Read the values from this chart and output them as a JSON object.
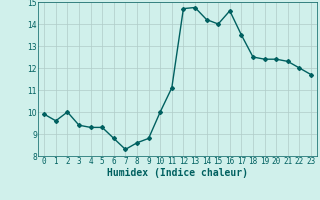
{
  "x": [
    0,
    1,
    2,
    3,
    4,
    5,
    6,
    7,
    8,
    9,
    10,
    11,
    12,
    13,
    14,
    15,
    16,
    17,
    18,
    19,
    20,
    21,
    22,
    23
  ],
  "y": [
    9.9,
    9.6,
    10.0,
    9.4,
    9.3,
    9.3,
    8.8,
    8.3,
    8.6,
    8.8,
    10.0,
    11.1,
    14.7,
    14.75,
    14.2,
    14.0,
    14.6,
    13.5,
    12.5,
    12.4,
    12.4,
    12.3,
    12.0,
    11.7
  ],
  "xlabel": "Humidex (Indice chaleur)",
  "ylim": [
    8,
    15
  ],
  "xlim": [
    -0.5,
    23.5
  ],
  "yticks": [
    8,
    9,
    10,
    11,
    12,
    13,
    14,
    15
  ],
  "xticks": [
    0,
    1,
    2,
    3,
    4,
    5,
    6,
    7,
    8,
    9,
    10,
    11,
    12,
    13,
    14,
    15,
    16,
    17,
    18,
    19,
    20,
    21,
    22,
    23
  ],
  "line_color": "#006060",
  "bg_color": "#d0f0eb",
  "grid_color": "#b0ccc8",
  "marker": "D",
  "marker_size": 2.0,
  "line_width": 1.0,
  "xlabel_fontsize": 7,
  "tick_fontsize": 5.5
}
